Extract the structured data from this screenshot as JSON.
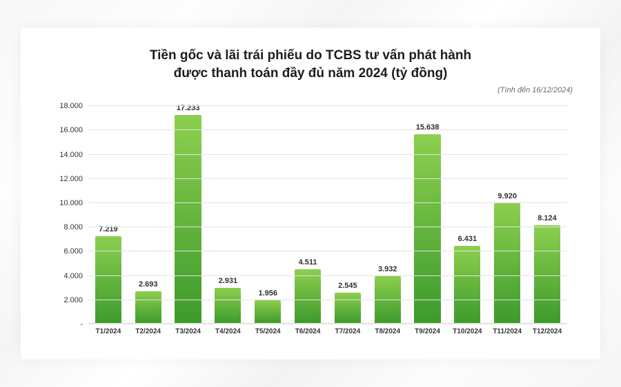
{
  "chart": {
    "type": "bar",
    "title_line1": "Tiền gốc và lãi trái phiếu do TCBS tư vấn phát hành",
    "title_line2": "được thanh toán đầy đủ năm 2024 (tỷ đồng)",
    "title_fontsize": 19,
    "title_color": "#1d1d1d",
    "subnote": "(Tính đến 16/12/2024)",
    "subnote_fontsize": 11,
    "subnote_color": "#6b6b6b",
    "categories": [
      "T1/2024",
      "T2/2024",
      "T3/2024",
      "T4/2024",
      "T5/2024",
      "T6/2024",
      "T7/2024",
      "T8/2024",
      "T9/2024",
      "T10/2024",
      "T11/2024",
      "T12/2024"
    ],
    "values": [
      7219,
      2693,
      17233,
      2931,
      1956,
      4511,
      2545,
      3932,
      15638,
      6431,
      9920,
      8124
    ],
    "value_labels": [
      "7.219",
      "2.693",
      "17.233",
      "2.931",
      "1.956",
      "4.511",
      "2.545",
      "3.932",
      "15.638",
      "6.431",
      "9.920",
      "8.124"
    ],
    "ylim": [
      0,
      18000
    ],
    "yticks": [
      0,
      2000,
      4000,
      6000,
      8000,
      10000,
      12000,
      14000,
      16000,
      18000
    ],
    "ytick_labels": [
      "-",
      "2.000",
      "4.000",
      "6.000",
      "8.000",
      "10.000",
      "12.000",
      "14.000",
      "16.000",
      "18.000"
    ],
    "bar_gradient_top": "#8dcf4f",
    "bar_gradient_bottom": "#3c9a2c",
    "bar_width_pct": 66,
    "background_color": "#ffffff",
    "grid_color": "#e2e2e2",
    "axis_font_color": "#333333",
    "ytick_fontsize": 11,
    "xtick_fontsize": 10,
    "value_label_fontsize": 11,
    "value_label_color": "#2f2f2f"
  }
}
